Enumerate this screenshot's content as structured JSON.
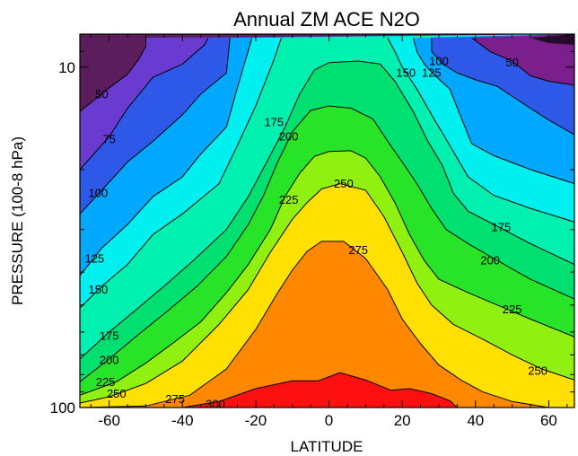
{
  "chart_data": {
    "type": "contour",
    "title": "Annual ZM ACE N2O",
    "xlabel": "LATITUDE",
    "ylabel": "PRESSURE (100-8 hPa)",
    "xlim": [
      -68,
      67
    ],
    "ylim": [
      100,
      8
    ],
    "y_scale": "log",
    "x_ticks": [
      -60,
      -40,
      -20,
      0,
      20,
      40,
      60
    ],
    "x_tick_labels": [
      "-60",
      "-40",
      "-20",
      "0",
      "20",
      "40",
      "60"
    ],
    "y_ticks": [
      10,
      100
    ],
    "y_tick_labels": [
      "10",
      "100"
    ],
    "grid": false,
    "levels": [
      25,
      50,
      75,
      100,
      125,
      150,
      175,
      200,
      225,
      250,
      275,
      300
    ],
    "colors": [
      "#5c1d5c",
      "#7b1f8c",
      "#6a3bd0",
      "#2d58e8",
      "#00a8ff",
      "#00f0f0",
      "#00f0b0",
      "#00e070",
      "#28e428",
      "#90f010",
      "#ffe000",
      "#ff8800",
      "#ff1010"
    ],
    "contours": [
      {
        "level": 25,
        "points": [
          [
            55,
            8.2
          ],
          [
            60,
            8.5
          ],
          [
            67,
            8.6
          ]
        ]
      },
      {
        "level": 50,
        "points": [
          [
            -68,
            13.5
          ],
          [
            -60,
            11.5
          ],
          [
            -55,
            10.5
          ],
          [
            -52,
            9.5
          ],
          [
            -50,
            8.7
          ],
          [
            -50,
            8.2
          ]
        ],
        "label": "50",
        "label_at": [
          -62,
          12.0
        ]
      },
      {
        "level": 50,
        "points": [
          [
            39,
            8.2
          ],
          [
            44,
            9.0
          ],
          [
            50,
            9.6
          ],
          [
            55,
            10.6
          ],
          [
            60,
            11.0
          ],
          [
            67,
            11.3
          ]
        ],
        "label": "50",
        "label_at": [
          50,
          9.7
        ]
      },
      {
        "level": 75,
        "points": [
          [
            -68,
            20.0
          ],
          [
            -60,
            16.0
          ],
          [
            -55,
            13.2
          ],
          [
            -48,
            10.7
          ],
          [
            -40,
            9.8
          ],
          [
            -34,
            8.6
          ],
          [
            -33,
            8.2
          ]
        ],
        "label": "75",
        "label_at": [
          -60,
          16.3
        ]
      },
      {
        "level": 100,
        "points": [
          [
            -68,
            27.0
          ],
          [
            -62,
            23.0
          ],
          [
            -55,
            19.0
          ],
          [
            -48,
            16.5
          ],
          [
            -40,
            13.8
          ],
          [
            -35,
            12.0
          ],
          [
            -28,
            10.4
          ],
          [
            -27,
            8.2
          ]
        ],
        "label": "100",
        "label_at": [
          -63,
          23.4
        ]
      },
      {
        "level": 100,
        "points": [
          [
            28,
            8.2
          ],
          [
            28,
            9.0
          ],
          [
            31,
            9.8
          ],
          [
            35,
            10.4
          ],
          [
            40,
            10.9
          ],
          [
            46,
            11.4
          ],
          [
            54,
            13.0
          ],
          [
            60,
            14.3
          ],
          [
            67,
            15.8
          ]
        ],
        "label": "100",
        "label_at": [
          30,
          9.6
        ]
      },
      {
        "level": 125,
        "points": [
          [
            -68,
            41.0
          ],
          [
            -62,
            34.0
          ],
          [
            -55,
            29.0
          ],
          [
            -48,
            24.0
          ],
          [
            -40,
            21.0
          ],
          [
            -35,
            18.0
          ],
          [
            -28,
            15.0
          ],
          [
            -25,
            11.5
          ],
          [
            -21,
            8.2
          ]
        ],
        "label": "125",
        "label_at": [
          -64,
          36.5
        ]
      },
      {
        "level": 125,
        "points": [
          [
            23,
            8.2
          ],
          [
            24,
            9.0
          ],
          [
            26,
            9.8
          ],
          [
            29,
            10.6
          ],
          [
            33,
            11.6
          ],
          [
            36,
            14.0
          ],
          [
            39,
            16.8
          ],
          [
            45,
            18.2
          ],
          [
            55,
            20.0
          ],
          [
            67,
            22.0
          ]
        ],
        "label": "125",
        "label_at": [
          28,
          10.4
        ]
      },
      {
        "level": 150,
        "points": [
          [
            -68,
            51.0
          ],
          [
            -62,
            44.0
          ],
          [
            -55,
            38.0
          ],
          [
            -48,
            31.0
          ],
          [
            -40,
            27.0
          ],
          [
            -30,
            22.0
          ],
          [
            -25,
            17.0
          ],
          [
            -20,
            13.0
          ],
          [
            -15,
            9.5
          ],
          [
            -13,
            8.2
          ]
        ],
        "label": "150",
        "label_at": [
          -63,
          45.0
        ]
      },
      {
        "level": 150,
        "points": [
          [
            16,
            8.2
          ],
          [
            18,
            9.0
          ],
          [
            20,
            10.0
          ],
          [
            24,
            11.6
          ],
          [
            28,
            13.8
          ],
          [
            32,
            16.3
          ],
          [
            38,
            21.0
          ],
          [
            45,
            23.8
          ],
          [
            55,
            26.0
          ],
          [
            67,
            28.5
          ]
        ],
        "label": "150",
        "label_at": [
          21,
          10.4
        ]
      },
      {
        "level": 175,
        "points": [
          [
            -68,
            72.0
          ],
          [
            -60,
            60.0
          ],
          [
            -53,
            52.0
          ],
          [
            -45,
            44.0
          ],
          [
            -37,
            37.0
          ],
          [
            -28,
            30.0
          ],
          [
            -22,
            24.0
          ],
          [
            -17,
            19.0
          ],
          [
            -12,
            15.0
          ],
          [
            -8,
            12.0
          ],
          [
            -4,
            10.2
          ],
          [
            0,
            9.7
          ],
          [
            8,
            9.6
          ],
          [
            14,
            9.8
          ],
          [
            18,
            11.0
          ],
          [
            23,
            13.5
          ],
          [
            27,
            16.5
          ],
          [
            31,
            19.5
          ],
          [
            34,
            23.5
          ],
          [
            38,
            26.5
          ],
          [
            45,
            29.0
          ],
          [
            55,
            33.0
          ],
          [
            67,
            38.0
          ]
        ],
        "label": "175",
        "label_at": [
          -60,
          61.5
        ],
        "label2": "175",
        "label2_at": [
          -15,
          14.5
        ],
        "label3": "175",
        "label3_at": [
          47,
          29.5
        ]
      },
      {
        "level": 200,
        "points": [
          [
            -68,
            84.0
          ],
          [
            -60,
            72.0
          ],
          [
            -52,
            61.0
          ],
          [
            -44,
            52.0
          ],
          [
            -36,
            44.0
          ],
          [
            -28,
            36.0
          ],
          [
            -22,
            29.0
          ],
          [
            -18,
            24.0
          ],
          [
            -14,
            19.0
          ],
          [
            -10,
            15.5
          ],
          [
            -5,
            13.4
          ],
          [
            0,
            13.0
          ],
          [
            6,
            13.2
          ],
          [
            12,
            14.2
          ],
          [
            16,
            16.5
          ],
          [
            20,
            19.0
          ],
          [
            24,
            22.0
          ],
          [
            28,
            26.0
          ],
          [
            32,
            30.0
          ],
          [
            38,
            33.0
          ],
          [
            45,
            36.5
          ],
          [
            55,
            42.0
          ],
          [
            67,
            48.0
          ]
        ],
        "label": "200",
        "label_at": [
          -60,
          72.5
        ],
        "label2": "200",
        "label2_at": [
          -11,
          16.0
        ],
        "label3": "200",
        "label3_at": [
          44,
          37.0
        ]
      },
      {
        "level": 225,
        "points": [
          [
            -68,
            92.0
          ],
          [
            -58,
            84.0
          ],
          [
            -50,
            74.0
          ],
          [
            -42,
            64.0
          ],
          [
            -35,
            56.0
          ],
          [
            -28,
            46.0
          ],
          [
            -22,
            38.0
          ],
          [
            -16,
            30.0
          ],
          [
            -12,
            24.0
          ],
          [
            -8,
            20.5
          ],
          [
            -4,
            18.3
          ],
          [
            0,
            17.7
          ],
          [
            6,
            17.6
          ],
          [
            10,
            18.5
          ],
          [
            14,
            21.0
          ],
          [
            18,
            25.0
          ],
          [
            22,
            31.0
          ],
          [
            26,
            37.0
          ],
          [
            30,
            42.0
          ],
          [
            38,
            46.0
          ],
          [
            45,
            49.5
          ],
          [
            55,
            55.0
          ],
          [
            67,
            62.0
          ]
        ],
        "label": "225",
        "label_at": [
          -61,
          84.0
        ],
        "label2": "225",
        "label2_at": [
          -11,
          24.5
        ],
        "label3": "225",
        "label3_at": [
          50,
          51.5
        ]
      },
      {
        "level": 250,
        "points": [
          [
            -68,
            97.0
          ],
          [
            -60,
            93.0
          ],
          [
            -50,
            85.0
          ],
          [
            -40,
            73.0
          ],
          [
            -30,
            57.0
          ],
          [
            -22,
            45.0
          ],
          [
            -16,
            35.0
          ],
          [
            -10,
            28.0
          ],
          [
            -6,
            25.0
          ],
          [
            -2,
            22.8
          ],
          [
            3,
            22.0
          ],
          [
            10,
            23.0
          ],
          [
            15,
            27.5
          ],
          [
            20,
            35.0
          ],
          [
            24,
            43.0
          ],
          [
            28,
            50.0
          ],
          [
            34,
            57.0
          ],
          [
            42,
            63.0
          ],
          [
            50,
            70.0
          ],
          [
            58,
            77.0
          ],
          [
            67,
            83.0
          ]
        ],
        "label": "250",
        "label_at": [
          -58,
          91.0
        ],
        "label2": "250",
        "label2_at": [
          4,
          22.0
        ],
        "label3": "250",
        "label3_at": [
          57,
          78.0
        ]
      },
      {
        "level": 275,
        "points": [
          [
            -68,
            100.0
          ],
          [
            -50,
            99.0
          ],
          [
            -38,
            92.0
          ],
          [
            -28,
            77.0
          ],
          [
            -20,
            59.0
          ],
          [
            -14,
            46.0
          ],
          [
            -10,
            39.5
          ],
          [
            -6,
            34.8
          ],
          [
            -2,
            32.5
          ],
          [
            4,
            32.5
          ],
          [
            10,
            36.5
          ],
          [
            16,
            45.0
          ],
          [
            20,
            55.0
          ],
          [
            25,
            65.0
          ],
          [
            30,
            75.0
          ],
          [
            36,
            83.0
          ],
          [
            42,
            90.0
          ],
          [
            50,
            96.0
          ],
          [
            60,
            100.0
          ]
        ],
        "label": "275",
        "label_at": [
          -42,
          94.5
        ],
        "label2": "275",
        "label2_at": [
          8,
          34.5
        ]
      },
      {
        "level": 300,
        "points": [
          [
            -40,
            100.0
          ],
          [
            -30,
            96.0
          ],
          [
            -20,
            88.0
          ],
          [
            -10,
            83.5
          ],
          [
            -3,
            83.5
          ],
          [
            3,
            79.0
          ],
          [
            10,
            83.0
          ],
          [
            17,
            89.0
          ],
          [
            22,
            88.0
          ],
          [
            28,
            91.0
          ],
          [
            33,
            95.5
          ],
          [
            35,
            100.0
          ]
        ],
        "label": "300",
        "label_at": [
          -31,
          97.5
        ]
      }
    ]
  }
}
